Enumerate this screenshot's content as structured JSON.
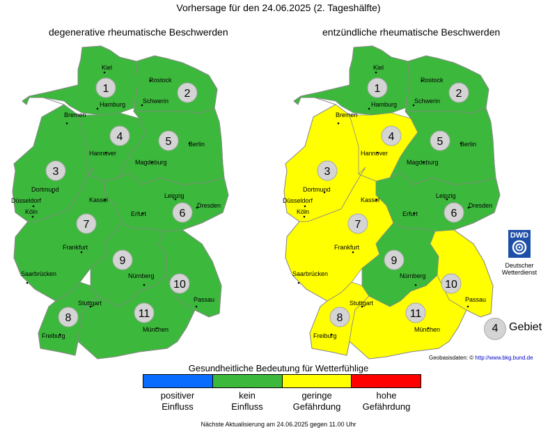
{
  "header": {
    "title": "Vorhersage für den 24.06.2025 (2. Tageshälfte)"
  },
  "colors": {
    "positive": "#0a6cff",
    "none": "#3cb83c",
    "minor": "#ffff00",
    "high": "#ff0000",
    "badge": "#d4d4d4"
  },
  "maps": [
    {
      "title": "degenerative rheumatische Beschwerden",
      "regions": [
        {
          "id": 1,
          "level": "none"
        },
        {
          "id": 2,
          "level": "none"
        },
        {
          "id": 3,
          "level": "none"
        },
        {
          "id": 4,
          "level": "none"
        },
        {
          "id": 5,
          "level": "none"
        },
        {
          "id": 6,
          "level": "none"
        },
        {
          "id": 7,
          "level": "none"
        },
        {
          "id": 8,
          "level": "none"
        },
        {
          "id": 9,
          "level": "none"
        },
        {
          "id": 10,
          "level": "none"
        },
        {
          "id": 11,
          "level": "none"
        }
      ]
    },
    {
      "title": "entzündliche rheumatische Beschwerden",
      "regions": [
        {
          "id": 1,
          "level": "none"
        },
        {
          "id": 2,
          "level": "none"
        },
        {
          "id": 3,
          "level": "minor"
        },
        {
          "id": 4,
          "level": "minor"
        },
        {
          "id": 5,
          "level": "none"
        },
        {
          "id": 6,
          "level": "none"
        },
        {
          "id": 7,
          "level": "minor"
        },
        {
          "id": 8,
          "level": "minor"
        },
        {
          "id": 9,
          "level": "none"
        },
        {
          "id": 10,
          "level": "minor"
        },
        {
          "id": 11,
          "level": "minor"
        }
      ]
    }
  ],
  "cities": [
    "Kiel",
    "Rostock",
    "Hamburg",
    "Schwerin",
    "Bremen",
    "Hannover",
    "Berlin",
    "Magdeburg",
    "Dortmund",
    "Düsseldorf",
    "Köln",
    "Kassel",
    "Leipzig",
    "Dresden",
    "Erfurt",
    "Frankfurt",
    "Saarbrücken",
    "Nürnberg",
    "Passau",
    "Stuttgart",
    "Freiburg",
    "München"
  ],
  "logo": {
    "abbr": "DWD",
    "name_line1": "Deutscher",
    "name_line2": "Wetterdienst"
  },
  "gebiet": {
    "number": "4",
    "label": "Gebiet"
  },
  "geobasis": {
    "label": "Geobasisdaten: ©",
    "url_text": "http://www.bkg.bund.de"
  },
  "legend": {
    "title": "Gesundheitliche Bedeutung für Wetterfühlige",
    "items": [
      {
        "line1": "positiver",
        "line2": "Einfluss",
        "level": "positive"
      },
      {
        "line1": "kein",
        "line2": "Einfluss",
        "level": "none"
      },
      {
        "line1": "geringe",
        "line2": "Gefährdung",
        "level": "minor"
      },
      {
        "line1": "hohe",
        "line2": "Gefährdung",
        "level": "high"
      }
    ]
  },
  "footer": {
    "note": "Nächste Aktualisierung am 24.06.2025 gegen 11.00 Uhr"
  }
}
